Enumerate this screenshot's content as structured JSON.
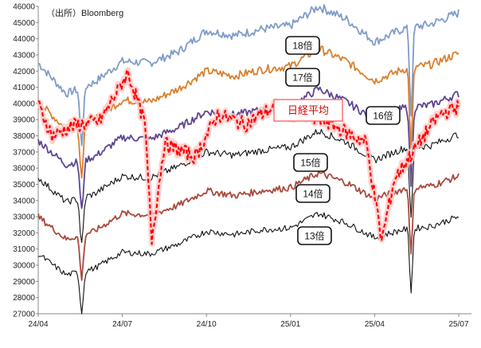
{
  "chart_data": {
    "type": "line",
    "title": "",
    "source": "（出所）Bloomberg",
    "x_ticks": [
      "24/04",
      "24/07",
      "24/10",
      "25/01",
      "25/04",
      "25/07"
    ],
    "ylim": [
      27000,
      46000
    ],
    "y_step": 1000,
    "grid": false,
    "annotation": "日経平均",
    "colors": {
      "18倍": "#7f9cc9",
      "17倍": "#d9802f",
      "16倍": "#5e4591",
      "15倍": "#111111",
      "14倍": "#a84a3e",
      "13倍": "#111111",
      "日経平均": "#ff0000"
    },
    "series": [
      {
        "name": "18倍",
        "x": [
          "24/04",
          "24/05",
          "24/06",
          "24/07",
          "24/08",
          "24/09",
          "24/10",
          "24/11",
          "24/12",
          "25/01",
          "25/02",
          "25/03",
          "25/04",
          "25/05",
          "25/06",
          "25/07"
        ],
        "values": [
          42500,
          40600,
          41300,
          42600,
          42500,
          43200,
          44500,
          44200,
          44600,
          44800,
          46000,
          45200,
          43800,
          44600,
          44900,
          45600
        ]
      },
      {
        "name": "17倍",
        "x": [
          "24/04",
          "24/05",
          "24/06",
          "24/07",
          "24/08",
          "24/09",
          "24/10",
          "24/11",
          "24/12",
          "25/01",
          "25/02",
          "25/03",
          "25/04",
          "25/05",
          "25/06",
          "25/07"
        ],
        "values": [
          40100,
          38400,
          39000,
          40200,
          40100,
          40900,
          42000,
          41700,
          42100,
          42300,
          43400,
          42600,
          41400,
          42100,
          42400,
          43100
        ]
      },
      {
        "name": "16倍",
        "x": [
          "24/04",
          "24/05",
          "24/06",
          "24/07",
          "24/08",
          "24/09",
          "24/10",
          "24/11",
          "24/12",
          "25/01",
          "25/02",
          "25/03",
          "25/04",
          "25/05",
          "25/06",
          "25/07"
        ],
        "values": [
          37700,
          36200,
          36700,
          37900,
          37800,
          38500,
          39500,
          39300,
          39600,
          39800,
          40900,
          40100,
          39000,
          39700,
          39900,
          40600
        ]
      },
      {
        "name": "15倍",
        "x": [
          "24/04",
          "24/05",
          "24/06",
          "24/07",
          "24/08",
          "24/09",
          "24/10",
          "24/11",
          "24/12",
          "25/01",
          "25/02",
          "25/03",
          "25/04",
          "25/05",
          "25/06",
          "25/07"
        ],
        "values": [
          35400,
          33900,
          34400,
          35500,
          35400,
          36100,
          37000,
          36800,
          37100,
          37300,
          38300,
          37600,
          36500,
          37200,
          37400,
          38100
        ]
      },
      {
        "name": "14倍",
        "x": [
          "24/04",
          "24/05",
          "24/06",
          "24/07",
          "24/08",
          "24/09",
          "24/10",
          "24/11",
          "24/12",
          "25/01",
          "25/02",
          "25/03",
          "25/04",
          "25/05",
          "25/06",
          "25/07"
        ],
        "values": [
          33000,
          31600,
          32100,
          33200,
          33100,
          33700,
          34600,
          34300,
          34600,
          34800,
          35700,
          35100,
          34100,
          34700,
          34900,
          35500
        ]
      },
      {
        "name": "13倍",
        "x": [
          "24/04",
          "24/05",
          "24/06",
          "24/07",
          "24/08",
          "24/09",
          "24/10",
          "24/11",
          "24/12",
          "25/01",
          "25/02",
          "25/03",
          "25/04",
          "25/05",
          "25/06",
          "25/07"
        ],
        "values": [
          30700,
          29400,
          29800,
          30800,
          30700,
          31300,
          32100,
          31900,
          32200,
          32300,
          33200,
          32600,
          31700,
          32200,
          32400,
          33000
        ]
      },
      {
        "name": "日経平均",
        "x": [
          "24/04",
          "24/04b",
          "24/05",
          "24/06",
          "24/07a",
          "24/07b",
          "24/08a",
          "24/08b",
          "24/09",
          "24/10",
          "24/11",
          "24/12",
          "25/01",
          "25/02",
          "25/03a",
          "25/03b",
          "25/04a",
          "25/04b",
          "25/05",
          "25/06",
          "25/07"
        ],
        "values": [
          39900,
          38000,
          38600,
          38900,
          41900,
          38800,
          31600,
          37500,
          36700,
          39300,
          38700,
          39800,
          39300,
          38800,
          38200,
          37600,
          31500,
          35300,
          37600,
          39300,
          39800
        ]
      }
    ]
  }
}
